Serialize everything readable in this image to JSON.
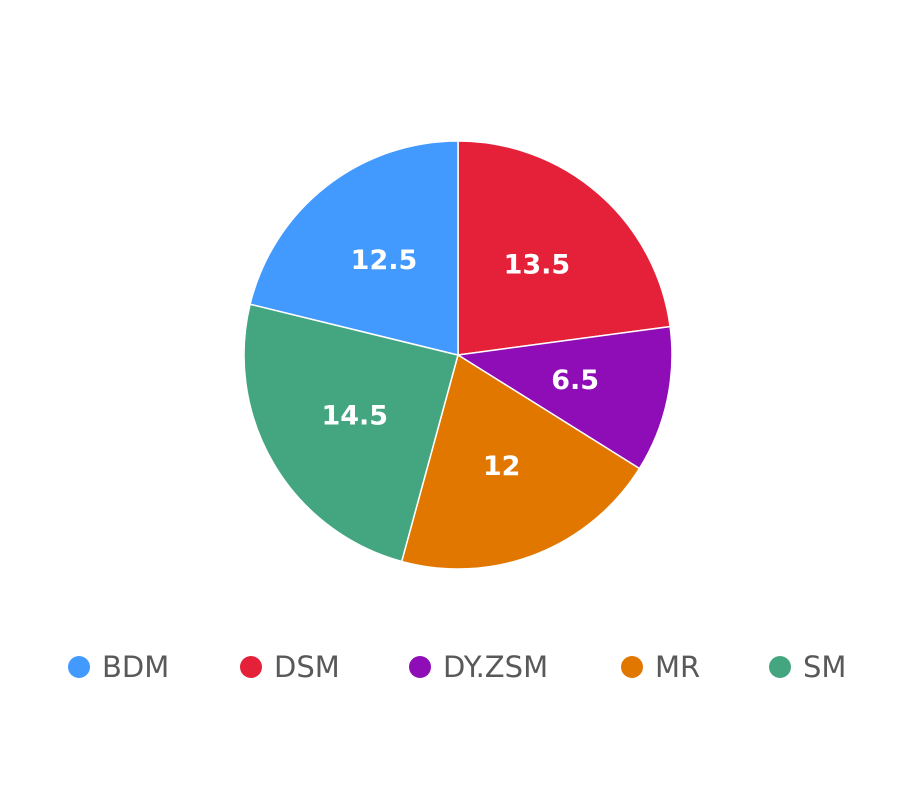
{
  "chart_data": {
    "type": "pie",
    "categories": [
      "BDM",
      "DSM",
      "DY.ZSM",
      "MR",
      "SM"
    ],
    "values": [
      12.5,
      13.5,
      6.5,
      12,
      14.5
    ],
    "value_labels": [
      "12.5",
      "13.5",
      "6.5",
      "12",
      "14.5"
    ],
    "colors": [
      "#4299fe",
      "#e52139",
      "#8e0db6",
      "#e27700",
      "#44a681"
    ],
    "legend_position": "bottom",
    "title": ""
  }
}
